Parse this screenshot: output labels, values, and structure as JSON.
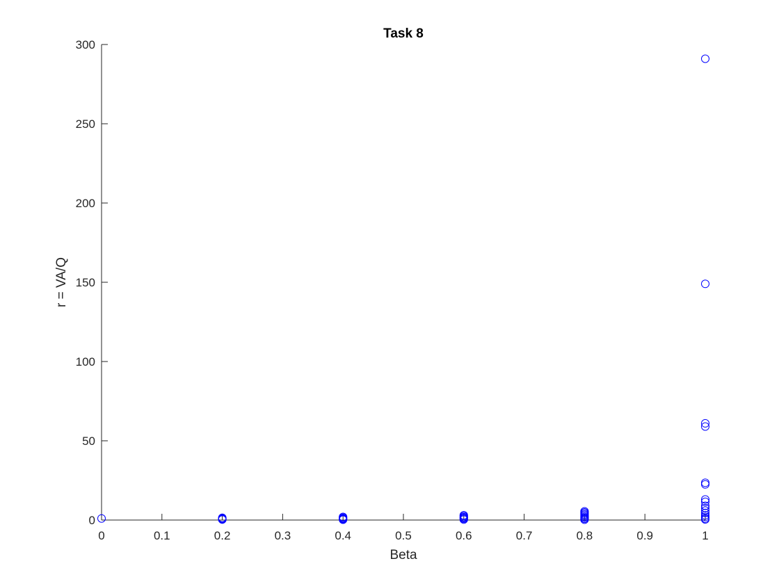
{
  "chart_data": {
    "type": "scatter",
    "title": "Task 8",
    "xlabel": "Beta",
    "ylabel": "r = VA/Q",
    "xlim": [
      0,
      1
    ],
    "ylim": [
      0,
      300
    ],
    "xticks": [
      0,
      0.1,
      0.2,
      0.3,
      0.4,
      0.5,
      0.6,
      0.7,
      0.8,
      0.9,
      1
    ],
    "xtick_labels": [
      "0",
      "0.1",
      "0.2",
      "0.3",
      "0.4",
      "0.5",
      "0.6",
      "0.7",
      "0.8",
      "0.9",
      "1"
    ],
    "yticks": [
      0,
      50,
      100,
      150,
      200,
      250,
      300
    ],
    "ytick_labels": [
      "0",
      "50",
      "100",
      "150",
      "200",
      "250",
      "300"
    ],
    "grid": false,
    "marker": "open-circle",
    "color": "#0000ff",
    "points": [
      {
        "x": 0,
        "y": 1
      },
      {
        "x": 0.2,
        "y": 0.3
      },
      {
        "x": 0.2,
        "y": 0.6
      },
      {
        "x": 0.2,
        "y": 1.0
      },
      {
        "x": 0.2,
        "y": 1.4
      },
      {
        "x": 0.4,
        "y": 0.2
      },
      {
        "x": 0.4,
        "y": 0.6
      },
      {
        "x": 0.4,
        "y": 1.0
      },
      {
        "x": 0.4,
        "y": 1.5
      },
      {
        "x": 0.4,
        "y": 2.0
      },
      {
        "x": 0.6,
        "y": 0.3
      },
      {
        "x": 0.6,
        "y": 0.8
      },
      {
        "x": 0.6,
        "y": 1.3
      },
      {
        "x": 0.6,
        "y": 1.8
      },
      {
        "x": 0.6,
        "y": 2.4
      },
      {
        "x": 0.6,
        "y": 3.0
      },
      {
        "x": 0.8,
        "y": 0.2
      },
      {
        "x": 0.8,
        "y": 0.8
      },
      {
        "x": 0.8,
        "y": 1.4
      },
      {
        "x": 0.8,
        "y": 2.0
      },
      {
        "x": 0.8,
        "y": 2.7
      },
      {
        "x": 0.8,
        "y": 3.4
      },
      {
        "x": 0.8,
        "y": 4.1
      },
      {
        "x": 0.8,
        "y": 4.8
      },
      {
        "x": 0.8,
        "y": 5.5
      },
      {
        "x": 1,
        "y": 291
      },
      {
        "x": 1,
        "y": 149
      },
      {
        "x": 1,
        "y": 61
      },
      {
        "x": 1,
        "y": 59
      },
      {
        "x": 1,
        "y": 23.5
      },
      {
        "x": 1,
        "y": 22.5
      },
      {
        "x": 1,
        "y": 13
      },
      {
        "x": 1,
        "y": 11.5
      },
      {
        "x": 1,
        "y": 9
      },
      {
        "x": 1,
        "y": 7.5
      },
      {
        "x": 1,
        "y": 6
      },
      {
        "x": 1,
        "y": 4.5
      },
      {
        "x": 1,
        "y": 3
      },
      {
        "x": 1,
        "y": 2
      },
      {
        "x": 1,
        "y": 1
      },
      {
        "x": 1,
        "y": 0.4
      }
    ]
  }
}
